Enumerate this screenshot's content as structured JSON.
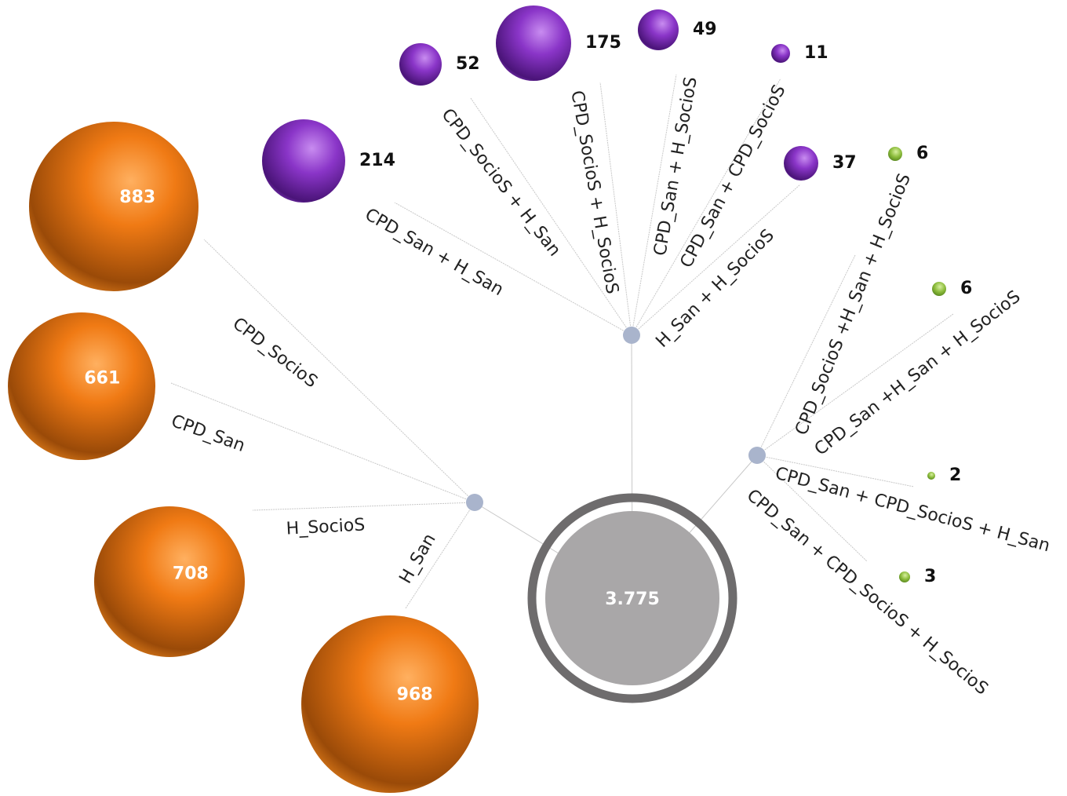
{
  "center": {
    "value": "3.775"
  },
  "groups": [
    {
      "nodes": [
        {
          "label": "CPD_SocioS",
          "value": "883"
        },
        {
          "label": "CPD_San",
          "value": "661"
        },
        {
          "label": "H_SocioS",
          "value": "708"
        },
        {
          "label": "H_San",
          "value": "968"
        }
      ]
    },
    {
      "nodes": [
        {
          "label": "CPD_San + H_San",
          "value": "214"
        },
        {
          "label": "CPD_SocioS + H_San",
          "value": "52"
        },
        {
          "label": "CPD_SocioS + H_SocioS",
          "value": "175"
        },
        {
          "label": "CPD_San + H_SocioS",
          "value": "49"
        },
        {
          "label": "CPD_San + CPD_SocioS",
          "value": "11"
        },
        {
          "label": "H_San + H_SocioS",
          "value": "37"
        }
      ]
    },
    {
      "nodes": [
        {
          "label": "CPD_SocioS +H_San + H_SocioS",
          "value": "6"
        },
        {
          "label": "CPD_San +H_San + H_SocioS",
          "value": "6"
        },
        {
          "label": "CPD_San + CPD_SocioS + H_San",
          "value": "2"
        },
        {
          "label": "CPD_San + CPD_SocioS + H_SocioS",
          "value": "3"
        }
      ]
    }
  ]
}
